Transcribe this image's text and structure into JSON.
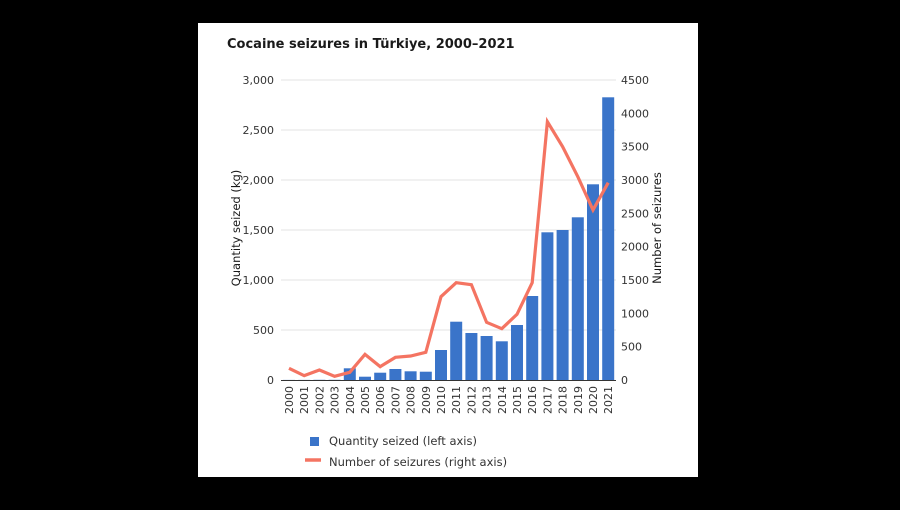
{
  "chart_data": {
    "type": "bar+line",
    "title": "Cocaine seizures in Türkiye, 2000–2021",
    "categories": [
      "2000",
      "2001",
      "2002",
      "2003",
      "2004",
      "2005",
      "2006",
      "2007",
      "2008",
      "2009",
      "2010",
      "2011",
      "2012",
      "2013",
      "2014",
      "2015",
      "2016",
      "2017",
      "2018",
      "2019",
      "2020",
      "2021"
    ],
    "series": [
      {
        "name": "Quantity seized (left axis)",
        "type": "bar",
        "axis": "left",
        "color": "#3a74c9",
        "values": [
          1,
          1,
          2,
          2,
          117,
          33,
          73,
          110,
          87,
          83,
          300,
          583,
          470,
          440,
          387,
          550,
          840,
          1477,
          1500,
          1627,
          1957,
          2827
        ]
      },
      {
        "name": "Number of seizures (right axis)",
        "type": "line",
        "axis": "right",
        "color": "#f47462",
        "values": [
          175,
          65,
          150,
          55,
          115,
          385,
          200,
          340,
          360,
          415,
          1250,
          1460,
          1430,
          865,
          770,
          985,
          1460,
          3875,
          3500,
          3050,
          2550,
          2960
        ]
      }
    ],
    "left_axis": {
      "label": "Quantity seized (kg)",
      "range": [
        0,
        3000
      ],
      "ticks": [
        0,
        500,
        1000,
        1500,
        2000,
        2500,
        3000
      ],
      "tick_labels": [
        "0",
        "500",
        "1,000",
        "1,500",
        "2,000",
        "2,500",
        "3,000"
      ]
    },
    "right_axis": {
      "label": "Number of seizures",
      "range": [
        0,
        4500
      ],
      "ticks": [
        0,
        500,
        1000,
        1500,
        2000,
        2500,
        3000,
        3500,
        4000,
        4500
      ],
      "tick_labels": [
        "0",
        "500",
        "1000",
        "1500",
        "2000",
        "2500",
        "3000",
        "3500",
        "4000",
        "4500"
      ]
    },
    "grid": true,
    "legend_position": "bottom-left"
  }
}
